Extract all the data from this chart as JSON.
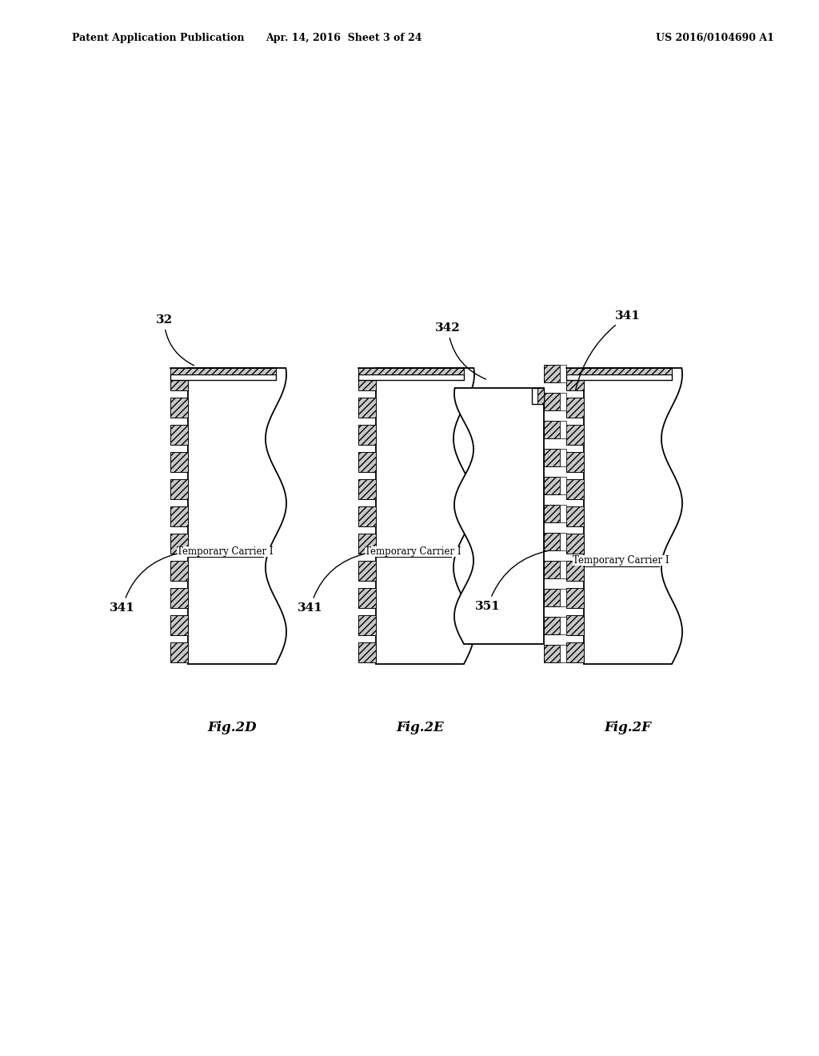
{
  "header_left": "Patent Application Publication",
  "header_mid": "Apr. 14, 2016  Sheet 3 of 24",
  "header_right": "US 2016/0104690 A1",
  "bg_color": "#ffffff",
  "fig_labels": [
    "Fig.2D",
    "Fig.2E",
    "Fig.2F"
  ]
}
